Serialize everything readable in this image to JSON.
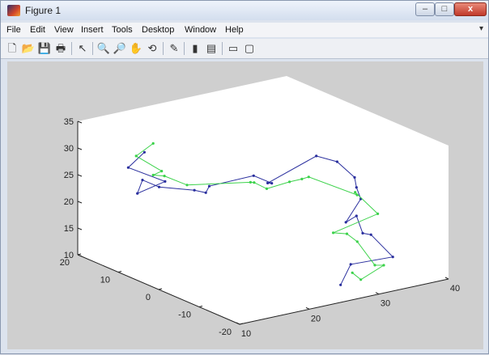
{
  "window": {
    "title": "Figure 1",
    "minimize_glyph": "–",
    "maximize_glyph": "□",
    "close_glyph": "x"
  },
  "menu": [
    "File",
    "Edit",
    "View",
    "Insert",
    "Tools",
    "Desktop",
    "Window",
    "Help"
  ],
  "toolbar": [
    {
      "name": "new-figure-icon",
      "glyph": "🗋"
    },
    {
      "name": "open-file-icon",
      "glyph": "📂"
    },
    {
      "name": "save-icon",
      "glyph": "💾"
    },
    {
      "name": "print-icon",
      "glyph": "🖶"
    },
    {
      "name": "edit-plot-arrow-icon",
      "glyph": "↖"
    },
    {
      "name": "zoom-in-icon",
      "glyph": "🔍"
    },
    {
      "name": "zoom-out-icon",
      "glyph": "🔎"
    },
    {
      "name": "pan-hand-icon",
      "glyph": "✋"
    },
    {
      "name": "rotate-3d-icon",
      "glyph": "⟲"
    },
    {
      "name": "data-cursor-icon",
      "glyph": "✎"
    },
    {
      "name": "insert-colorbar-icon",
      "glyph": "▮"
    },
    {
      "name": "insert-legend-icon",
      "glyph": "▤"
    },
    {
      "name": "hide-plot-tools-icon",
      "glyph": "▭"
    },
    {
      "name": "show-plot-tools-icon",
      "glyph": "▢"
    }
  ],
  "chart_data": {
    "type": "line",
    "projection": "3d",
    "xlim": [
      10,
      40
    ],
    "ylim": [
      -20,
      20
    ],
    "zlim": [
      10,
      35
    ],
    "x_ticks": [
      "10",
      "20",
      "30",
      "40"
    ],
    "y_ticks": [
      "-20",
      "-10",
      "0",
      "10",
      "20"
    ],
    "z_ticks": [
      "10",
      "15",
      "20",
      "25",
      "30",
      "35"
    ],
    "grid": false,
    "series": [
      {
        "color": "#2a2f9e",
        "points": [
          [
            17.2,
            15.9,
            28.5
          ],
          [
            15.8,
            17.5,
            25.5
          ],
          [
            17.9,
            12.0,
            24.1
          ],
          [
            14.5,
            13.0,
            22.5
          ],
          [
            15.0,
            12.6,
            25.0
          ],
          [
            16.1,
            10.4,
            24.1
          ],
          [
            17.8,
            4.6,
            24.9
          ],
          [
            18.8,
            3.5,
            24.5
          ],
          [
            19.3,
            3.5,
            25.6
          ],
          [
            23.0,
            -1.1,
            28.0
          ],
          [
            22.7,
            -6.1,
            28.3
          ],
          [
            22.1,
            -6.1,
            28.5
          ],
          [
            25.9,
            -11.6,
            34.3
          ],
          [
            27.2,
            -14.5,
            33.8
          ],
          [
            29.3,
            -15.2,
            30.5
          ],
          [
            29.4,
            -15.5,
            28.7
          ],
          [
            29.6,
            -16.2,
            26.7
          ],
          [
            28.8,
            -13.9,
            21.8
          ],
          [
            29.1,
            -16.0,
            23.6
          ],
          [
            30.0,
            -16.0,
            20.1
          ],
          [
            31.3,
            -15.8,
            19.4
          ],
          [
            32.0,
            -20.0,
            16.4
          ],
          [
            28.1,
            -16.3,
            14.9
          ],
          [
            25.9,
            -17.6,
            12.1
          ]
        ]
      },
      {
        "color": "#3bd24a",
        "points": [
          [
            18.8,
            16.5,
            29.5
          ],
          [
            17.0,
            17.6,
            27.3
          ],
          [
            18.8,
            14.4,
            25.0
          ],
          [
            17.0,
            13.4,
            25.1
          ],
          [
            17.4,
            11.3,
            25.5
          ],
          [
            18.6,
            7.8,
            24.6
          ],
          [
            22.9,
            -0.5,
            26.6
          ],
          [
            22.6,
            -1.9,
            27.1
          ],
          [
            23.6,
            -3.3,
            26.1
          ],
          [
            25.3,
            -6.0,
            27.8
          ],
          [
            25.8,
            -8.2,
            28.9
          ],
          [
            25.5,
            -10.4,
            30.1
          ],
          [
            29.2,
            -16.0,
            27.5
          ],
          [
            29.5,
            -15.0,
            27.6
          ],
          [
            31.0,
            -18.0,
            24.1
          ],
          [
            27.4,
            -13.2,
            20.0
          ],
          [
            28.6,
            -14.5,
            19.9
          ],
          [
            29.4,
            -15.7,
            18.6
          ],
          [
            30.0,
            -19.0,
            15.1
          ],
          [
            30.7,
            -20.0,
            15.2
          ],
          [
            28.4,
            -18.3,
            12.6
          ],
          [
            27.7,
            -17.4,
            13.8
          ]
        ]
      }
    ]
  }
}
